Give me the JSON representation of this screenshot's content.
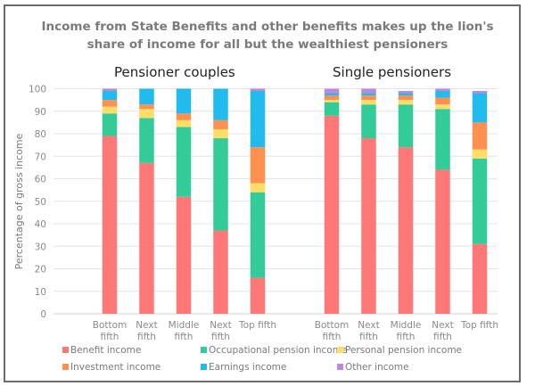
{
  "chart_data": {
    "type": "bar",
    "stacked": true,
    "title": "Income from State Benefits and other benefits makes up the lion's share of income for all but the wealthiest pensioners",
    "title_lines": [
      "Income from State Benefits and other benefits makes up the lion's",
      "share of income for all but the wealthiest pensioners"
    ],
    "xlabel": "",
    "ylabel": "Percentage of gross income",
    "ylim": [
      0,
      100
    ],
    "yticks": [
      0,
      10,
      20,
      30,
      40,
      50,
      60,
      70,
      80,
      90,
      100
    ],
    "grid": true,
    "legend_position": "bottom",
    "panels": [
      {
        "title": "Pensioner couples",
        "categories": [
          [
            "Bottom",
            "fifth"
          ],
          [
            "Next",
            "fifth"
          ],
          [
            "Middle",
            "fifth"
          ],
          [
            "Next",
            "fifth"
          ],
          [
            "Top fifth"
          ]
        ],
        "series": [
          {
            "name": "Benefit income",
            "values": [
              79,
              67,
              52,
              37,
              16
            ]
          },
          {
            "name": "Occupational pension income",
            "values": [
              10,
              20,
              31,
              41,
              38
            ]
          },
          {
            "name": "Personal pension income",
            "values": [
              3,
              4,
              3,
              4,
              4
            ]
          },
          {
            "name": "Investment income",
            "values": [
              3,
              2,
              3,
              4,
              16
            ]
          },
          {
            "name": "Earnings income",
            "values": [
              4,
              7,
              11,
              14,
              25
            ]
          },
          {
            "name": "Other income",
            "values": [
              1,
              0,
              0,
              0,
              1
            ]
          }
        ]
      },
      {
        "title": "Single pensioners",
        "categories": [
          [
            "Bottom",
            "fifth"
          ],
          [
            "Next",
            "fifth"
          ],
          [
            "Middle",
            "fifth"
          ],
          [
            "Next",
            "fifth"
          ],
          [
            "Top fifth"
          ]
        ],
        "series": [
          {
            "name": "Benefit income",
            "values": [
              88,
              78,
              74,
              64,
              31
            ]
          },
          {
            "name": "Occupational pension income",
            "values": [
              6,
              15,
              19,
              27,
              38
            ]
          },
          {
            "name": "Personal pension income",
            "values": [
              1,
              2,
              2,
              2,
              4
            ]
          },
          {
            "name": "Investment income",
            "values": [
              2,
              2,
              2,
              3,
              12
            ]
          },
          {
            "name": "Earnings income",
            "values": [
              1,
              1,
              1,
              3,
              13
            ]
          },
          {
            "name": "Other income",
            "values": [
              2,
              2,
              1,
              1,
              1
            ]
          }
        ]
      }
    ],
    "legend": [
      {
        "name": "Benefit income",
        "color": "#ff7878"
      },
      {
        "name": "Occupational pension income",
        "color": "#33cc99"
      },
      {
        "name": "Personal pension income",
        "color": "#ffdd66"
      },
      {
        "name": "Investment income",
        "color": "#ff9050"
      },
      {
        "name": "Earnings income",
        "color": "#22bbee"
      },
      {
        "name": "Other income",
        "color": "#bb88dd"
      }
    ]
  }
}
